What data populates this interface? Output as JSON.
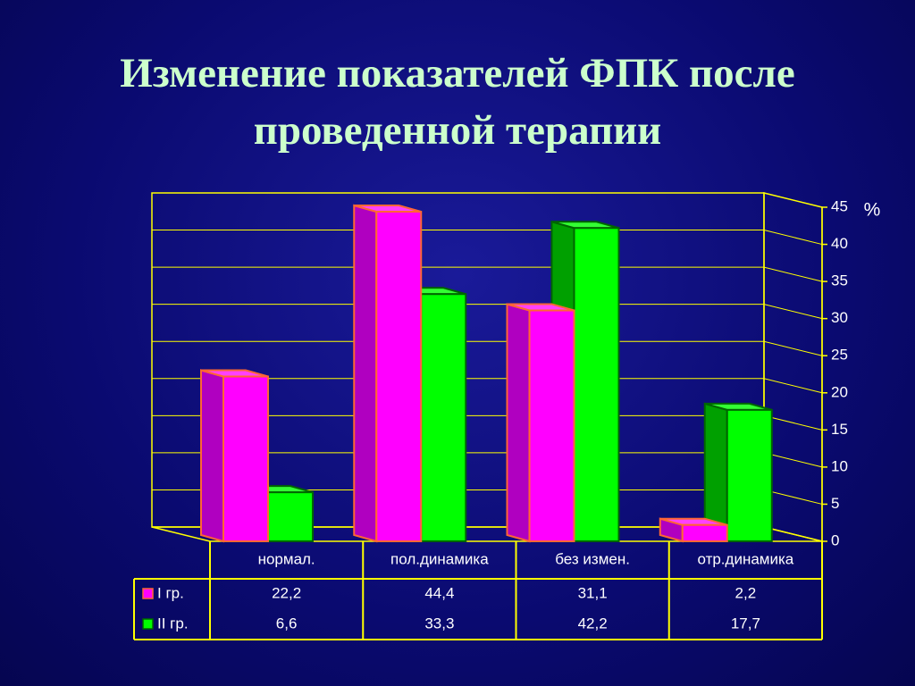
{
  "chart_data": {
    "type": "bar3d",
    "title": "Изменение показателей ФПК после проведенной терапии",
    "y_label": "%",
    "categories": [
      "нормал.",
      "пол.динамика",
      "без измен.",
      "отр.динамика"
    ],
    "series": [
      {
        "name": "I гр.",
        "color": "#ff00ff",
        "values": [
          22.2,
          44.4,
          31.1,
          2.2
        ],
        "value_labels": [
          "22,2",
          "44,4",
          "31,1",
          "2,2"
        ]
      },
      {
        "name": "II гр.",
        "color": "#00ff00",
        "values": [
          6.6,
          33.3,
          42.2,
          17.7
        ],
        "value_labels": [
          "6,6",
          "33,3",
          "42,2",
          "17,7"
        ]
      }
    ],
    "ylim": [
      0,
      45
    ],
    "yticks": [
      0,
      5,
      10,
      15,
      20,
      25,
      30,
      35,
      40,
      45
    ],
    "grid": true
  }
}
